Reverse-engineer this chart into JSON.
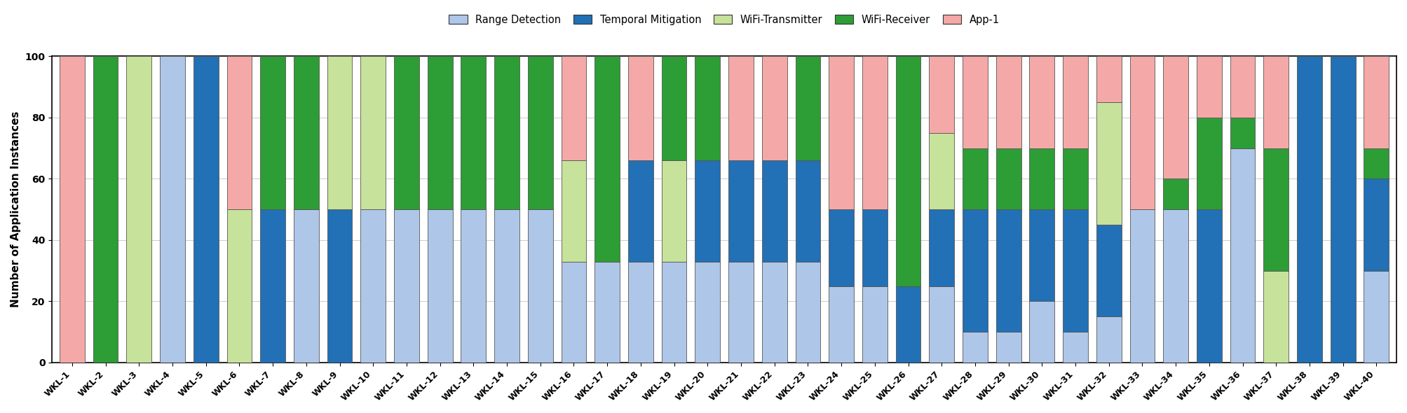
{
  "categories": [
    "WKL-1",
    "WKL-2",
    "WKL-3",
    "WKL-4",
    "WKL-5",
    "WKL-6",
    "WKL-7",
    "WKL-8",
    "WKL-9",
    "WKL-10",
    "WKL-11",
    "WKL-12",
    "WKL-13",
    "WKL-14",
    "WKL-15",
    "WKL-16",
    "WKL-17",
    "WKL-18",
    "WKL-19",
    "WKL-20",
    "WKL-21",
    "WKL-22",
    "WKL-23",
    "WKL-24",
    "WKL-25",
    "WKL-26",
    "WKL-27",
    "WKL-28",
    "WKL-29",
    "WKL-30",
    "WKL-31",
    "WKL-32",
    "WKL-33",
    "WKL-34",
    "WKL-35",
    "WKL-36",
    "WKL-37",
    "WKL-38",
    "WKL-39",
    "WKL-40"
  ],
  "series": {
    "Range Detection": [
      0,
      0,
      0,
      100,
      0,
      0,
      0,
      50,
      0,
      50,
      50,
      50,
      50,
      50,
      50,
      33,
      33,
      33,
      33,
      33,
      33,
      33,
      33,
      25,
      25,
      0,
      25,
      10,
      10,
      20,
      10,
      15,
      50,
      50,
      0,
      70,
      0,
      0,
      0,
      30
    ],
    "Temporal Mitigation": [
      0,
      0,
      0,
      0,
      100,
      0,
      50,
      0,
      50,
      0,
      0,
      0,
      0,
      0,
      0,
      0,
      0,
      33,
      0,
      33,
      33,
      33,
      33,
      25,
      25,
      25,
      25,
      40,
      40,
      30,
      40,
      30,
      0,
      0,
      50,
      0,
      0,
      100,
      100,
      30
    ],
    "WiFi-Transmitter": [
      0,
      0,
      100,
      0,
      0,
      50,
      0,
      0,
      50,
      50,
      0,
      0,
      0,
      0,
      0,
      33,
      0,
      0,
      33,
      0,
      0,
      0,
      0,
      0,
      0,
      0,
      25,
      0,
      0,
      0,
      0,
      40,
      0,
      0,
      0,
      0,
      30,
      0,
      0,
      0
    ],
    "WiFi-Receiver": [
      0,
      100,
      0,
      0,
      0,
      0,
      50,
      50,
      0,
      0,
      50,
      50,
      50,
      50,
      50,
      0,
      67,
      0,
      34,
      34,
      0,
      0,
      34,
      0,
      0,
      75,
      0,
      20,
      20,
      20,
      20,
      0,
      0,
      10,
      30,
      10,
      40,
      0,
      0,
      10
    ],
    "App-1": [
      100,
      0,
      0,
      0,
      0,
      50,
      0,
      0,
      0,
      0,
      0,
      0,
      0,
      0,
      0,
      34,
      0,
      34,
      0,
      0,
      34,
      34,
      0,
      50,
      50,
      0,
      25,
      30,
      30,
      30,
      30,
      15,
      50,
      40,
      20,
      20,
      30,
      0,
      0,
      30
    ]
  },
  "colors": {
    "Range Detection": "#aec6e8",
    "Temporal Mitigation": "#2270b5",
    "WiFi-Transmitter": "#c7e29a",
    "WiFi-Receiver": "#2c9e35",
    "App-1": "#f4a9a8"
  },
  "ylabel": "Number of Application Instances",
  "ylim": [
    0,
    100
  ],
  "yticks": [
    0,
    20,
    40,
    60,
    80,
    100
  ],
  "legend_order": [
    "Range Detection",
    "Temporal Mitigation",
    "WiFi-Transmitter",
    "WiFi-Receiver",
    "App-1"
  ],
  "edgecolor": "#555555",
  "bar_width": 0.75
}
